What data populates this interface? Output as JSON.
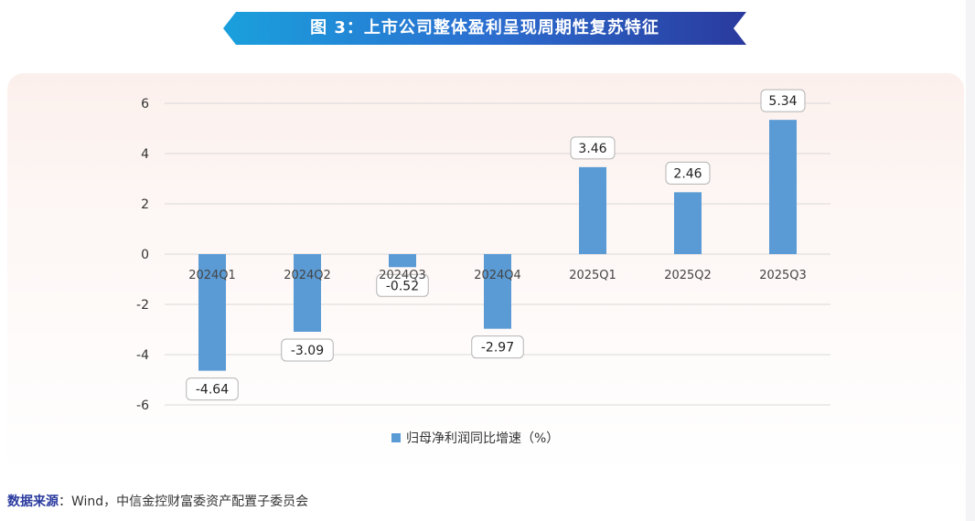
{
  "header": {
    "title": "图 3：上市公司整体盈利呈现周期性复苏特征"
  },
  "colors": {
    "bar": "#5b9bd5",
    "grid": "#d9d9d9",
    "banner_start": "#1aa0dc",
    "banner_end": "#2a3a9e"
  },
  "chart_data": {
    "type": "bar",
    "categories": [
      "2024Q1",
      "2024Q2",
      "2024Q3",
      "2024Q4",
      "2025Q1",
      "2025Q2",
      "2025Q3"
    ],
    "series": [
      {
        "name": "归母净利润同比增速（%）",
        "values": [
          -4.64,
          -3.09,
          -0.52,
          -2.97,
          3.46,
          2.46,
          5.34
        ]
      }
    ],
    "data_labels": [
      "-4.64",
      "-3.09",
      "-0.52",
      "-2.97",
      "3.46",
      "2.46",
      "5.34"
    ],
    "ylim": [
      -6,
      6
    ],
    "yticks": [
      6,
      4,
      2,
      0,
      -2,
      -4,
      -6
    ],
    "grid": true,
    "legend_position": "bottom"
  },
  "footer": {
    "source_label": "数据来源",
    "source_text": "：Wind，中信金控财富委资产配置子委员会"
  }
}
